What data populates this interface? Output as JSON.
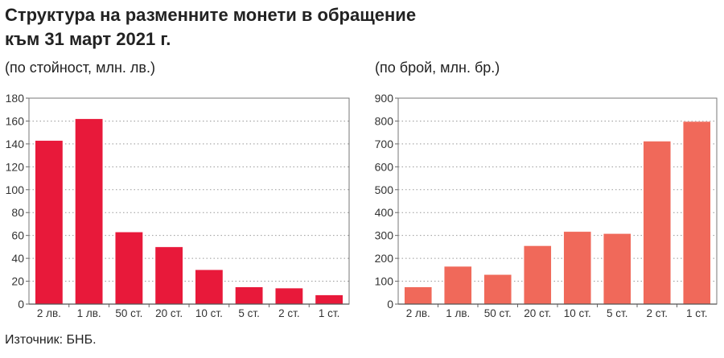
{
  "title_line1": "Структура на разменните монети в обращение",
  "title_line2": "към 31 март 2021 г.",
  "source": "Източник: БНБ.",
  "chart_data": [
    {
      "type": "bar",
      "subtitle": "(по стойност, млн. лв.)",
      "categories": [
        "2 лв.",
        "1 лв.",
        "50 ст.",
        "20 ст.",
        "10 ст.",
        "5 ст.",
        "2 ст.",
        "1 ст."
      ],
      "values": [
        143,
        162,
        63,
        50,
        30,
        15,
        14,
        8
      ],
      "ylim": [
        0,
        180
      ],
      "yticks": [
        0,
        20,
        40,
        60,
        80,
        100,
        120,
        140,
        160,
        180
      ],
      "grid": true,
      "color": "#e8193a"
    },
    {
      "type": "bar",
      "subtitle": "(по брой, млн. бр.)",
      "categories": [
        "2 лв.",
        "1 лв.",
        "50 ст.",
        "20 ст.",
        "10 ст.",
        "5 ст.",
        "2 ст.",
        "1 ст."
      ],
      "values": [
        75,
        165,
        129,
        255,
        317,
        308,
        712,
        798
      ],
      "ylim": [
        0,
        900
      ],
      "yticks": [
        0,
        100,
        200,
        300,
        400,
        500,
        600,
        700,
        800,
        900
      ],
      "grid": true,
      "color": "#f0695a"
    }
  ]
}
